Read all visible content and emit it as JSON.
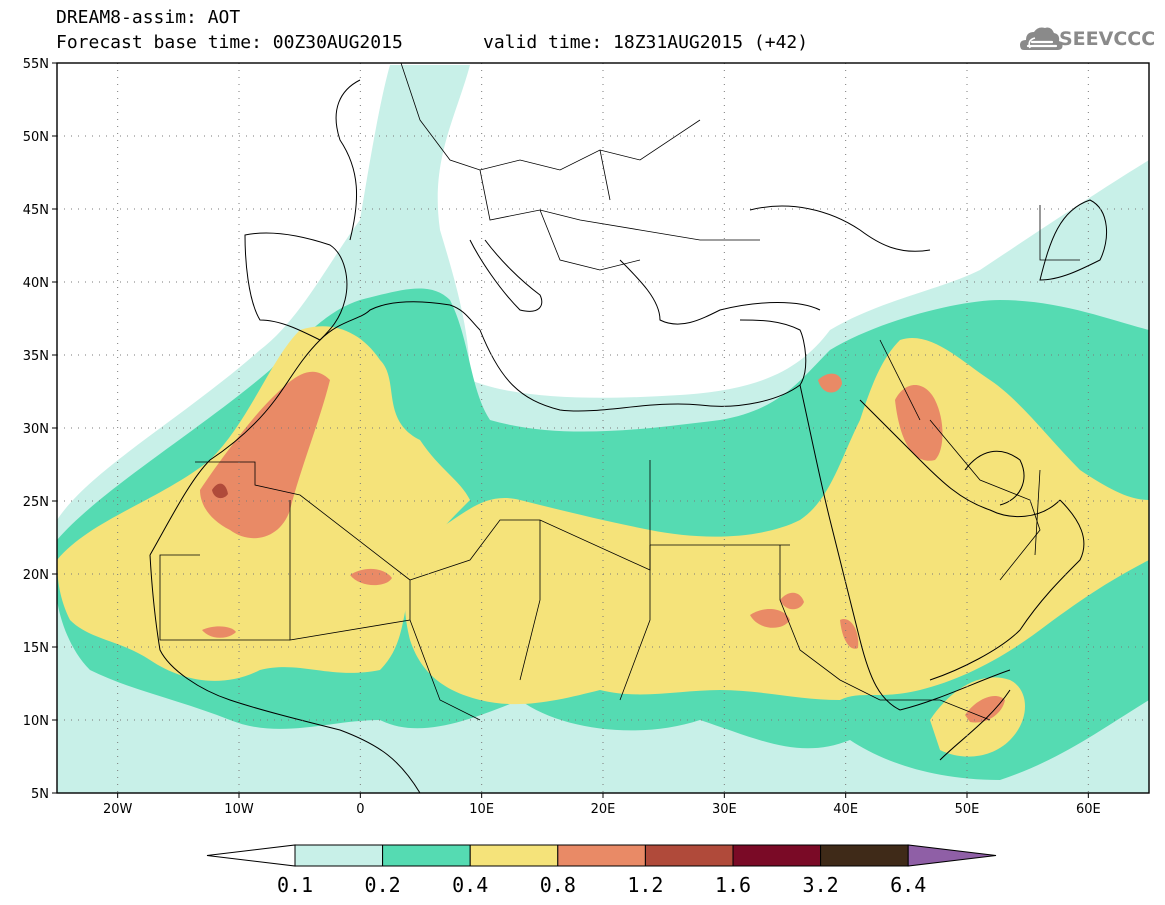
{
  "header": {
    "model_line": "DREAM8-assim: AOT",
    "base_time_line": "Forecast base time: 00Z30AUG2015",
    "valid_time_line": "valid time: 18Z31AUG2015 (+42)"
  },
  "logo": {
    "text": "SEEVCCC",
    "icon": "cloud-icon"
  },
  "map": {
    "lat_labels": [
      "55N",
      "50N",
      "45N",
      "40N",
      "35N",
      "30N",
      "25N",
      "20N",
      "15N",
      "10N",
      "5N"
    ],
    "lon_labels": [
      "20W",
      "10W",
      "0",
      "10E",
      "20E",
      "30E",
      "40E",
      "50E",
      "60E"
    ],
    "extent": {
      "lon_min": -25,
      "lon_max": 65,
      "lat_min": 5,
      "lat_max": 55
    }
  },
  "colorbar": {
    "thresholds": [
      "0.1",
      "0.2",
      "0.4",
      "0.8",
      "1.2",
      "1.6",
      "3.2",
      "6.4"
    ],
    "colors": [
      "#ffffff",
      "#c8f0e8",
      "#55dbb2",
      "#f5e37a",
      "#e98a66",
      "#b04a3a",
      "#7a0a26",
      "#3f2a18",
      "#8f5fa6"
    ]
  }
}
